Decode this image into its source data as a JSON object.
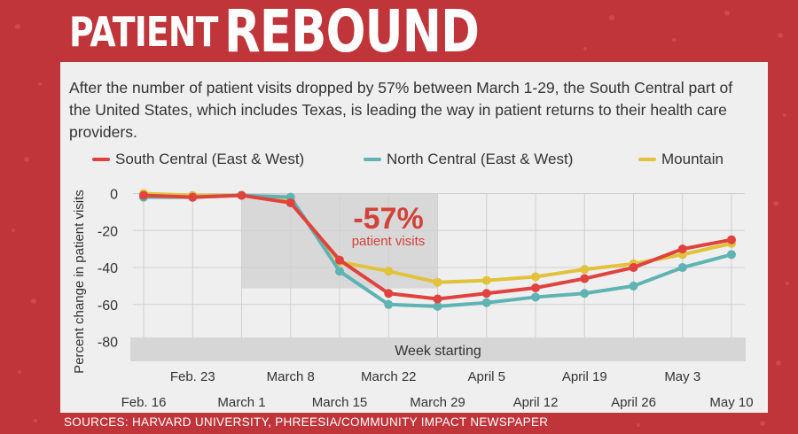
{
  "headline": {
    "word1": "PATIENT",
    "word2": "REBOUND"
  },
  "description": "After the number of patient visits dropped by 57% between March 1-29, the South Central part of the United States, which includes Texas, is leading the way in patient returns to their health care providers.",
  "source": "SOURCES: HARVARD UNIVERSITY, PHREESIA/COMMUNITY IMPACT NEWSPAPER",
  "colors": {
    "background": "#c0353a",
    "panel": "#efefef",
    "south_central": "#e0433d",
    "north_central": "#5fb4b3",
    "mountain": "#e2c23b",
    "highlight": "#d8d8d8",
    "callout": "#d2413a"
  },
  "chart_data": {
    "type": "line",
    "title": "",
    "xlabel": "Week starting",
    "ylabel": "Percent change in patient visits",
    "x": [
      "Feb. 16",
      "Feb. 23",
      "March 1",
      "March 8",
      "March 15",
      "March 22",
      "March 29",
      "April 5",
      "April 12",
      "April 19",
      "April 26",
      "May 3",
      "May 10"
    ],
    "ylim": [
      -85,
      0
    ],
    "yticks": [
      0,
      -20,
      -40,
      -60,
      -80
    ],
    "grid": true,
    "legend_position": "top",
    "series": [
      {
        "name": "South Central (East & West)",
        "values": [
          -1,
          -2,
          -1,
          -5,
          -36,
          -54,
          -57,
          -54,
          -51,
          -46,
          -40,
          -30,
          -25
        ]
      },
      {
        "name": "North Central (East & West)",
        "values": [
          -2,
          -2,
          -1,
          -2,
          -42,
          -60,
          -61,
          -59,
          -56,
          -54,
          -50,
          -40,
          -33
        ]
      },
      {
        "name": "Mountain",
        "values": [
          0,
          -1,
          -1,
          -4,
          -37,
          -42,
          -48,
          -47,
          -45,
          -41,
          -38,
          -33,
          -27
        ]
      }
    ],
    "annotation": {
      "value": "-57%",
      "label": "patient visits",
      "from": "March 1",
      "to": "March 29"
    }
  }
}
